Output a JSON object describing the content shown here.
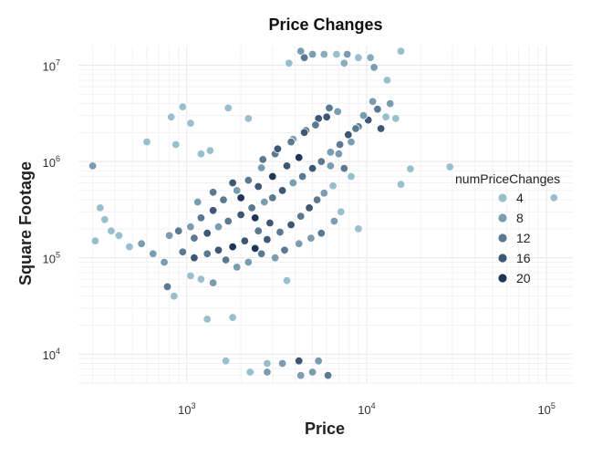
{
  "chart_data": {
    "type": "scatter",
    "title": "Price Changes",
    "xlabel": "Price",
    "ylabel": "Square Footage",
    "x_scale": "log10",
    "y_scale": "log10",
    "xlim": [
      250,
      140000
    ],
    "ylim": [
      5000,
      16000000
    ],
    "x_ticks": [
      {
        "base": "10",
        "exp": "3"
      },
      {
        "base": "10",
        "exp": "4"
      },
      {
        "base": "10",
        "exp": "5"
      }
    ],
    "y_ticks": [
      {
        "base": "10",
        "exp": "4"
      },
      {
        "base": "10",
        "exp": "5"
      },
      {
        "base": "10",
        "exp": "6"
      },
      {
        "base": "10",
        "exp": "7"
      }
    ],
    "grid": true,
    "legend": {
      "title": "numPriceChanges",
      "placement": "right",
      "entries": [
        {
          "label": "4",
          "value": 4
        },
        {
          "label": "8",
          "value": 8
        },
        {
          "label": "12",
          "value": 12
        },
        {
          "label": "16",
          "value": 16
        },
        {
          "label": "20",
          "value": 20
        }
      ]
    },
    "color_scale": {
      "low": "#a8cfdc",
      "high": "#1f3557",
      "min": 2,
      "max": 20
    },
    "points": [
      [
        4300,
        14000000,
        8
      ],
      [
        5000,
        13000000,
        8
      ],
      [
        5800,
        13000000,
        6
      ],
      [
        6800,
        13000000,
        4
      ],
      [
        7800,
        13000000,
        8
      ],
      [
        9000,
        12000000,
        4
      ],
      [
        10500,
        12000000,
        6
      ],
      [
        15500,
        14000000,
        4
      ],
      [
        4500,
        12000000,
        12
      ],
      [
        3700,
        10500000,
        4
      ],
      [
        7500,
        10500000,
        6
      ],
      [
        11000,
        9500000,
        8
      ],
      [
        13000,
        7000000,
        4
      ],
      [
        13500,
        4000000,
        8
      ],
      [
        14500,
        2800000,
        4
      ],
      [
        820,
        2900000,
        4
      ],
      [
        950,
        3700000,
        4
      ],
      [
        1050,
        2500000,
        4
      ],
      [
        1700,
        3600000,
        4
      ],
      [
        2200,
        2800000,
        4
      ],
      [
        600,
        1600000,
        4
      ],
      [
        870,
        1500000,
        4
      ],
      [
        1200,
        1200000,
        4
      ],
      [
        1350,
        1300000,
        4
      ],
      [
        300,
        900000,
        8
      ],
      [
        17500,
        840000,
        4
      ],
      [
        29000,
        880000,
        4
      ],
      [
        15500,
        580000,
        4
      ],
      [
        8200,
        700000,
        4
      ],
      [
        7500,
        850000,
        12
      ],
      [
        6500,
        560000,
        4
      ],
      [
        110000,
        420000,
        4
      ],
      [
        330,
        330000,
        4
      ],
      [
        350,
        250000,
        4
      ],
      [
        380,
        190000,
        4
      ],
      [
        310,
        150000,
        4
      ],
      [
        480,
        130000,
        4
      ],
      [
        420,
        170000,
        4
      ],
      [
        9000,
        200000,
        4
      ],
      [
        560,
        140000,
        8
      ],
      [
        650,
        110000,
        8
      ],
      [
        750,
        90000,
        8
      ],
      [
        780,
        50000,
        12
      ],
      [
        850,
        40000,
        4
      ],
      [
        1050,
        65000,
        4
      ],
      [
        1200,
        60000,
        4
      ],
      [
        1400,
        55000,
        8
      ],
      [
        1300,
        23000,
        4
      ],
      [
        1800,
        24000,
        4
      ],
      [
        3600,
        58000,
        4
      ],
      [
        1650,
        8500,
        4
      ],
      [
        2250,
        6500,
        4
      ],
      [
        2800,
        6500,
        8
      ],
      [
        2800,
        8000,
        4
      ],
      [
        3400,
        8000,
        8
      ],
      [
        4200,
        8500,
        16
      ],
      [
        4300,
        6000,
        8
      ],
      [
        5000,
        6500,
        8
      ],
      [
        5400,
        8500,
        8
      ],
      [
        6100,
        6000,
        12
      ],
      [
        1900,
        80000,
        8
      ],
      [
        2200,
        90000,
        8
      ],
      [
        2600,
        110000,
        12
      ],
      [
        3100,
        100000,
        8
      ],
      [
        3500,
        120000,
        12
      ],
      [
        4200,
        140000,
        8
      ],
      [
        4900,
        160000,
        8
      ],
      [
        5600,
        180000,
        12
      ],
      [
        6600,
        240000,
        8
      ],
      [
        7200,
        300000,
        4
      ],
      [
        6300,
        900000,
        8
      ],
      [
        7000,
        1200000,
        8
      ],
      [
        8200,
        1600000,
        8
      ],
      [
        9000,
        2300000,
        12
      ],
      [
        10200,
        2700000,
        16
      ],
      [
        11500,
        3500000,
        12
      ],
      [
        12000,
        2200000,
        16
      ],
      [
        12800,
        2900000,
        4
      ],
      [
        9600,
        3000000,
        8
      ],
      [
        10800,
        4200000,
        8
      ],
      [
        6200,
        3600000,
        12
      ],
      [
        5400,
        2800000,
        16
      ],
      [
        4600,
        2100000,
        12
      ],
      [
        3900,
        1700000,
        8
      ],
      [
        3100,
        1200000,
        12
      ],
      [
        2600,
        860000,
        8
      ],
      [
        2200,
        640000,
        12
      ],
      [
        1900,
        500000,
        8
      ],
      [
        1600,
        400000,
        12
      ],
      [
        1400,
        310000,
        16
      ],
      [
        1200,
        260000,
        12
      ],
      [
        1050,
        210000,
        8
      ],
      [
        900,
        190000,
        12
      ],
      [
        800,
        170000,
        8
      ],
      [
        1100,
        160000,
        12
      ],
      [
        1300,
        180000,
        16
      ],
      [
        1500,
        210000,
        8
      ],
      [
        1700,
        240000,
        12
      ],
      [
        2000,
        280000,
        16
      ],
      [
        2300,
        330000,
        12
      ],
      [
        2700,
        380000,
        8
      ],
      [
        3000,
        420000,
        12
      ],
      [
        3400,
        500000,
        16
      ],
      [
        3900,
        600000,
        8
      ],
      [
        4400,
        700000,
        12
      ],
      [
        5000,
        850000,
        16
      ],
      [
        5600,
        1000000,
        12
      ],
      [
        6300,
        1250000,
        8
      ],
      [
        7100,
        1500000,
        12
      ],
      [
        7900,
        1900000,
        16
      ],
      [
        8700,
        2200000,
        12
      ],
      [
        2900,
        230000,
        16
      ],
      [
        2500,
        190000,
        12
      ],
      [
        2100,
        150000,
        16
      ],
      [
        1800,
        130000,
        20
      ],
      [
        1500,
        120000,
        16
      ],
      [
        1300,
        110000,
        12
      ],
      [
        1100,
        100000,
        16
      ],
      [
        950,
        115000,
        12
      ],
      [
        1650,
        95000,
        12
      ],
      [
        2400,
        125000,
        20
      ],
      [
        2800,
        155000,
        16
      ],
      [
        3300,
        185000,
        12
      ],
      [
        3800,
        220000,
        16
      ],
      [
        4300,
        270000,
        12
      ],
      [
        4800,
        330000,
        16
      ],
      [
        5300,
        400000,
        12
      ],
      [
        5800,
        470000,
        8
      ],
      [
        2000,
        420000,
        20
      ],
      [
        2500,
        550000,
        16
      ],
      [
        3000,
        700000,
        20
      ],
      [
        3600,
        900000,
        16
      ],
      [
        4200,
        1100000,
        20
      ],
      [
        1800,
        600000,
        16
      ],
      [
        1400,
        480000,
        12
      ],
      [
        1150,
        380000,
        8
      ],
      [
        2650,
        1050000,
        12
      ],
      [
        3200,
        1350000,
        16
      ],
      [
        3800,
        1600000,
        12
      ],
      [
        4500,
        2000000,
        16
      ],
      [
        5200,
        2400000,
        12
      ],
      [
        6000,
        2900000,
        16
      ],
      [
        6900,
        3300000,
        8
      ],
      [
        2400,
        260000,
        20
      ]
    ]
  }
}
